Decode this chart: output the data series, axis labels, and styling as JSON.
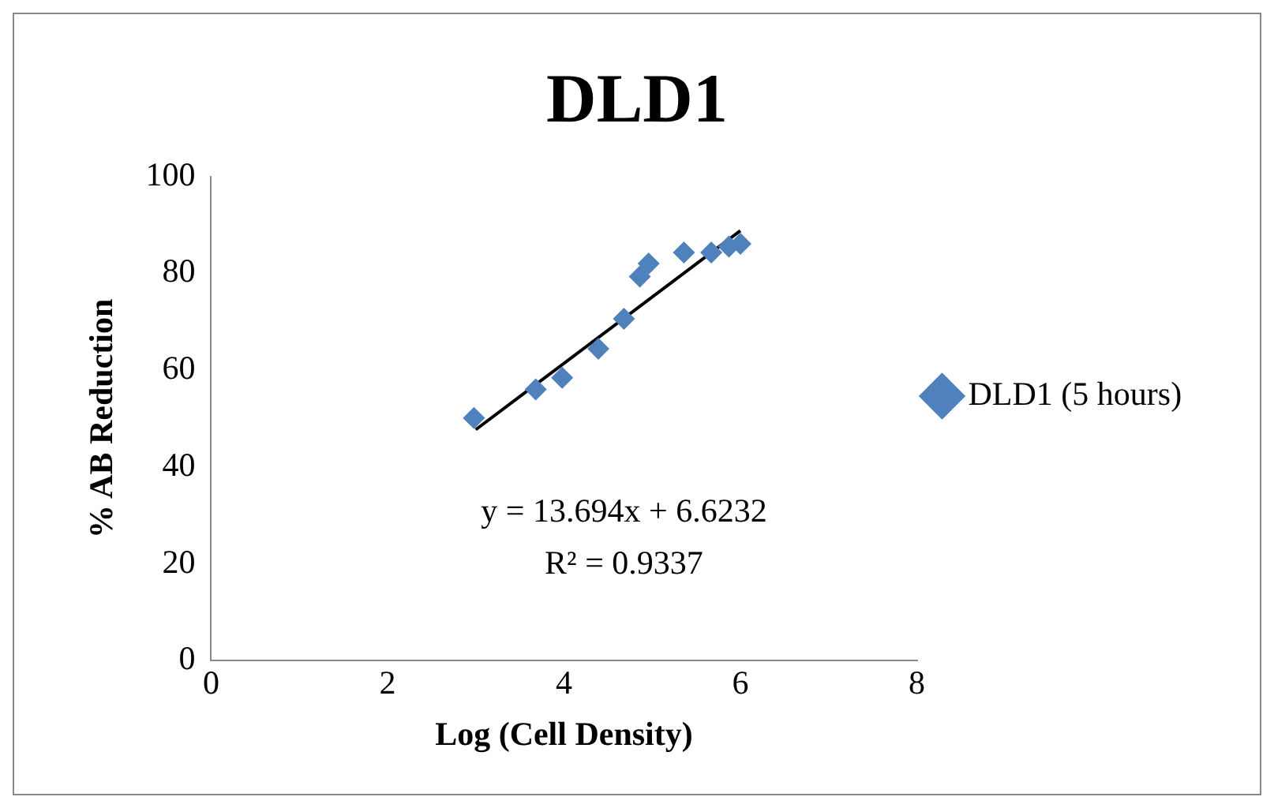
{
  "chart_data": {
    "type": "scatter",
    "title": "DLD1",
    "xlabel": "Log (Cell Density)",
    "ylabel": "% AB Reduction",
    "xlim": [
      0,
      8
    ],
    "xticks": [
      0,
      2,
      4,
      6,
      8
    ],
    "ylim": [
      0,
      100
    ],
    "yticks": [
      0,
      20,
      40,
      60,
      80,
      100
    ],
    "grid": false,
    "legend": "right",
    "marker": "diamond",
    "series": [
      {
        "name": "DLD1 (5 hours)",
        "color": "#4f81bd",
        "x": [
          2.98,
          3.68,
          3.98,
          4.39,
          4.68,
          4.86,
          4.96,
          5.36,
          5.67,
          5.87,
          6.0
        ],
        "values": [
          50.1,
          56,
          58.4,
          64.4,
          70.6,
          79.3,
          82,
          84.3,
          84.3,
          85.5,
          86.1
        ]
      },
      {
        "type": "line",
        "color": "#000000",
        "marker": "none",
        "x": [
          3,
          6
        ],
        "values": [
          47.7,
          88.8
        ]
      }
    ],
    "annotations": [
      "y = 13.694x + 6.6232",
      "R² = 0.9337"
    ]
  }
}
